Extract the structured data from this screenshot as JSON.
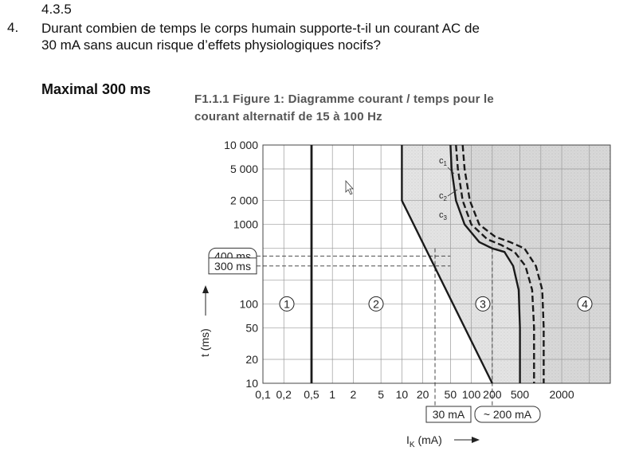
{
  "question": {
    "section": "4.3.5",
    "number": "4.",
    "line1": "Durant combien de temps le corps humain supporte-t-il un courant AC de",
    "line2": "30 mA sans aucun risque d’effets physiologiques nocifs?"
  },
  "answer": "Maximal 300 ms",
  "chart_data": {
    "type": "line",
    "title_line1": "F1.1.1 Figure 1: Diagramme courant / temps pour le",
    "title_line2": "courant alternatif de 15 à 100 Hz",
    "xlabel": "I",
    "xlabel_sub": "K",
    "xlabel_unit": "(mA)",
    "ylabel": "t (ms)",
    "xscale": "log",
    "yscale": "log",
    "xlim": [
      0.1,
      10000
    ],
    "ylim": [
      10,
      10000
    ],
    "x_ticks": [
      0.1,
      0.2,
      0.5,
      1,
      2,
      5,
      10,
      20,
      50,
      100,
      200,
      500,
      2000
    ],
    "x_tick_labels": [
      "0,1",
      "0,2",
      "0,5",
      "1",
      "2",
      "5",
      "10",
      "20",
      "50",
      "100",
      "200",
      "500",
      "2000"
    ],
    "y_ticks": [
      10,
      20,
      50,
      100,
      1000,
      2000,
      5000,
      10000
    ],
    "y_tick_labels": [
      "10",
      "20",
      "50",
      "100",
      "1000",
      "2 000",
      "5 000",
      "10 000"
    ],
    "grid": true,
    "regions": [
      {
        "label": "1",
        "x": 0.2,
        "y": 100
      },
      {
        "label": "2",
        "x": 4,
        "y": 100
      },
      {
        "label": "3",
        "x": 150,
        "y": 100
      },
      {
        "label": "4",
        "x": 3000,
        "y": 100
      }
    ],
    "series": [
      {
        "name": "",
        "style": "solid",
        "x": [
          0.5,
          0.5
        ],
        "y": [
          10,
          10000
        ]
      },
      {
        "name": "",
        "style": "solid",
        "x": [
          10,
          10,
          200
        ],
        "y": [
          10000,
          2000,
          10
        ]
      },
      {
        "name": "c1",
        "style": "solid",
        "x": [
          50,
          52,
          60,
          80,
          130,
          200,
          300,
          400,
          480,
          500,
          500
        ],
        "y": [
          10000,
          5000,
          2000,
          1000,
          600,
          500,
          450,
          300,
          150,
          50,
          10
        ]
      },
      {
        "name": "c2",
        "style": "dashed",
        "x": [
          60,
          64,
          75,
          100,
          170,
          270,
          420,
          600,
          750,
          800,
          800
        ],
        "y": [
          10000,
          5000,
          2000,
          1000,
          650,
          550,
          450,
          300,
          150,
          50,
          10
        ]
      },
      {
        "name": "c3",
        "style": "dashed",
        "x": [
          75,
          80,
          95,
          130,
          220,
          360,
          580,
          850,
          1050,
          1100,
          1100
        ],
        "y": [
          10000,
          5000,
          2000,
          1000,
          700,
          600,
          500,
          300,
          150,
          50,
          10
        ]
      }
    ],
    "annotations": [
      {
        "type": "hline",
        "label": "400 ms",
        "y": 400,
        "boxed": "rounded"
      },
      {
        "type": "hline",
        "label": "300 ms",
        "y": 300,
        "boxed": "square"
      },
      {
        "type": "vline",
        "label": "30 mA",
        "x": 30,
        "boxed": "square"
      },
      {
        "type": "vline",
        "label": "~ 200 mA",
        "x": 200,
        "boxed": "rounded"
      }
    ],
    "colors": {
      "zone_shade": "#e4e4e4",
      "line": "#1a1a1a",
      "grid": "#9a9a9a"
    }
  }
}
